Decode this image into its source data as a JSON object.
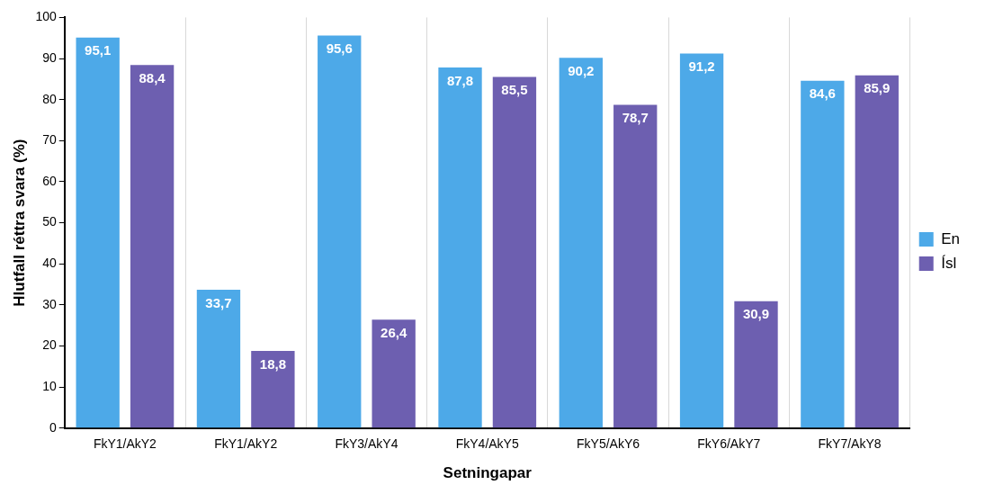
{
  "chart_data": {
    "type": "bar",
    "xlabel": "Setningapar",
    "ylabel": "Hlutfall réttra svara (%)",
    "categories": [
      "FkY1/AkY2",
      "FkY1/AkY2",
      "FkY3/AkY4",
      "FkY4/AkY5",
      "FkY5/AkY6",
      "FkY6/AkY7",
      "FkY7/AkY8"
    ],
    "series": [
      {
        "name": "En",
        "color": "#4da9e8",
        "values": [
          95.1,
          33.7,
          95.6,
          87.8,
          90.2,
          91.2,
          84.6
        ],
        "value_labels": [
          "95,1",
          "33,7",
          "95,6",
          "87,8",
          "90,2",
          "91,2",
          "84,6"
        ]
      },
      {
        "name": "Ísl",
        "color": "#6d5fb0",
        "values": [
          88.4,
          18.8,
          26.4,
          85.5,
          78.7,
          30.9,
          85.9
        ],
        "value_labels": [
          "88,4",
          "18,8",
          "26,4",
          "85,5",
          "78,7",
          "30,9",
          "85,9"
        ]
      }
    ],
    "ylim": [
      0,
      100
    ],
    "yticks": [
      0,
      10,
      20,
      30,
      40,
      50,
      60,
      70,
      80,
      90,
      100
    ],
    "grid": "x",
    "legend": "right"
  }
}
